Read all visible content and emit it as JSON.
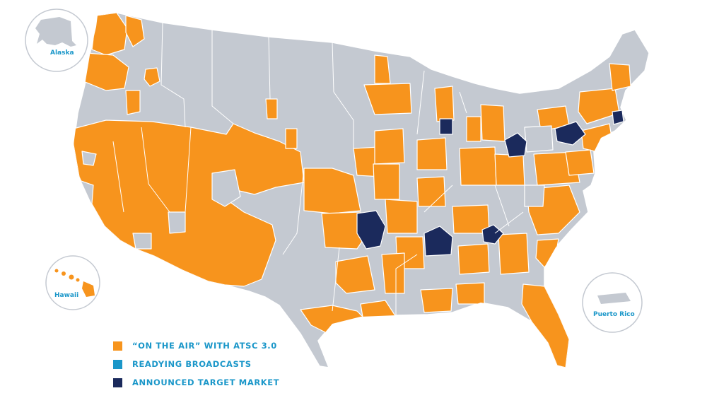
{
  "colors": {
    "on_air": "#f7941d",
    "readying": "#1b97c9",
    "target": "#1b2a5c",
    "base": "#c4c9d1",
    "border": "#ffffff",
    "inset_ring": "#c4c9d1",
    "label": "#1b97c9"
  },
  "insets": {
    "alaska": "Alaska",
    "hawaii": "Hawaii",
    "puerto_rico": "Puerto Rico"
  },
  "legend": [
    {
      "label": "“ON THE AIR” WITH ATSC 3.0",
      "color": "#f7941d"
    },
    {
      "label": "READYING BROADCASTS",
      "color": "#1b97c9"
    },
    {
      "label": "ANNOUNCED TARGET MARKET",
      "color": "#1b2a5c"
    }
  ],
  "map": {
    "status_values": [
      "on_air",
      "readying",
      "target"
    ],
    "target_markets": [
      "Chicago",
      "Cleveland",
      "Pittsburgh",
      "Boston",
      "Tulsa",
      "Nashville",
      "Knoxville"
    ]
  }
}
